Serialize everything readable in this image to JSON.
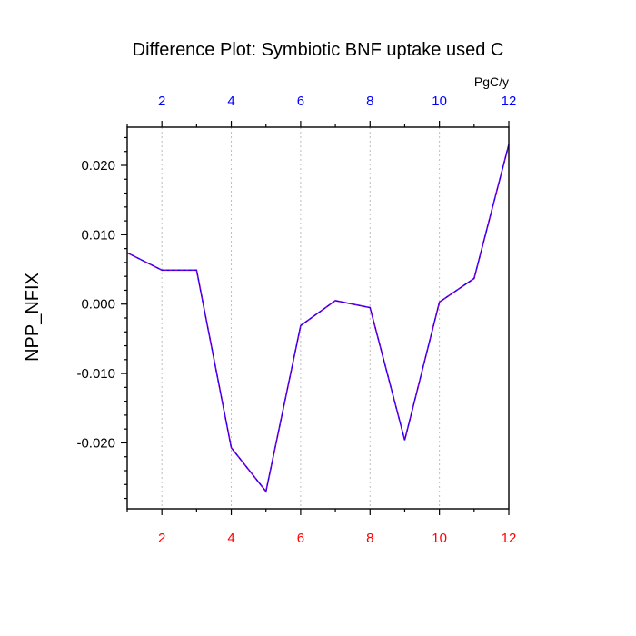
{
  "chart_data": {
    "type": "line",
    "title": "Difference Plot: Symbiotic BNF uptake used C",
    "units": "PgC/y",
    "ylabel": "NPP_NFIX",
    "xlabel": "",
    "xlim": [
      1,
      12
    ],
    "ylim": [
      -0.0295,
      0.0255
    ],
    "x": [
      1,
      2,
      3,
      4,
      5,
      6,
      7,
      8,
      9,
      10,
      11,
      12
    ],
    "series": [
      {
        "values": [
          0.0074,
          0.0049,
          0.0049,
          -0.0207,
          -0.027,
          -0.0031,
          0.0005,
          -0.0005,
          -0.0196,
          0.0003,
          0.0037,
          0.023
        ]
      }
    ],
    "x_ticks": [
      2,
      4,
      6,
      8,
      10,
      12
    ],
    "y_ticks": [
      {
        "value": 0.02,
        "label": "0.020"
      },
      {
        "value": 0.01,
        "label": "0.010"
      },
      {
        "value": 0.0,
        "label": "0.000"
      },
      {
        "value": -0.01,
        "label": "-0.010"
      },
      {
        "value": -0.02,
        "label": "-0.020"
      }
    ],
    "grid": {
      "vertical": true,
      "horizontal": false
    },
    "colors": {
      "line": "#7a00d6",
      "line_dash": "#0000ff",
      "top_ticks": "#0000ff",
      "bottom_ticks": "#ff0000",
      "grid": "#bdbdbd",
      "axis": "#000000"
    }
  }
}
